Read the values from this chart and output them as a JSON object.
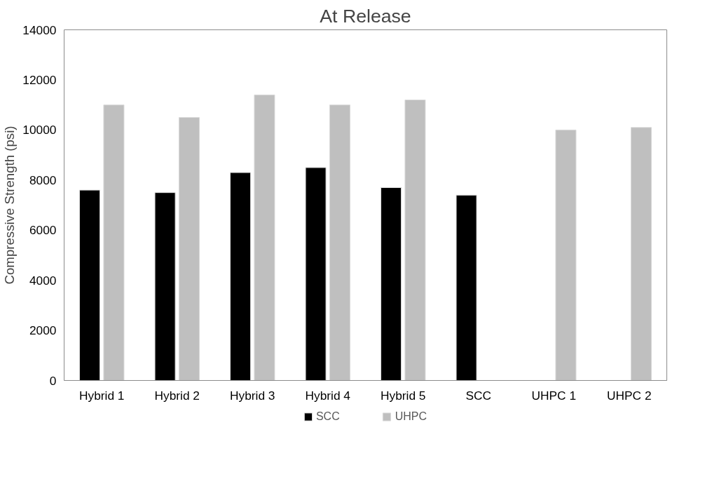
{
  "chart_data": {
    "type": "bar",
    "title": "At Release",
    "ylabel": "Compressive Strength (psi)",
    "categories": [
      "Hybrid 1",
      "Hybrid 2",
      "Hybrid 3",
      "Hybrid 4",
      "Hybrid 5",
      "SCC",
      "UHPC 1",
      "UHPC 2"
    ],
    "series": [
      {
        "name": "SCC",
        "color": "#000000",
        "values": [
          7600,
          7500,
          8300,
          8500,
          7700,
          7400,
          null,
          null
        ]
      },
      {
        "name": "UHPC",
        "color": "#bfbfbf",
        "values": [
          11000,
          10500,
          11400,
          11000,
          11200,
          null,
          10000,
          10100
        ]
      }
    ],
    "ylim": [
      0,
      14000
    ],
    "yticks": [
      0,
      2000,
      4000,
      6000,
      8000,
      10000,
      12000,
      14000
    ],
    "grid": false,
    "legend": "bottom"
  }
}
